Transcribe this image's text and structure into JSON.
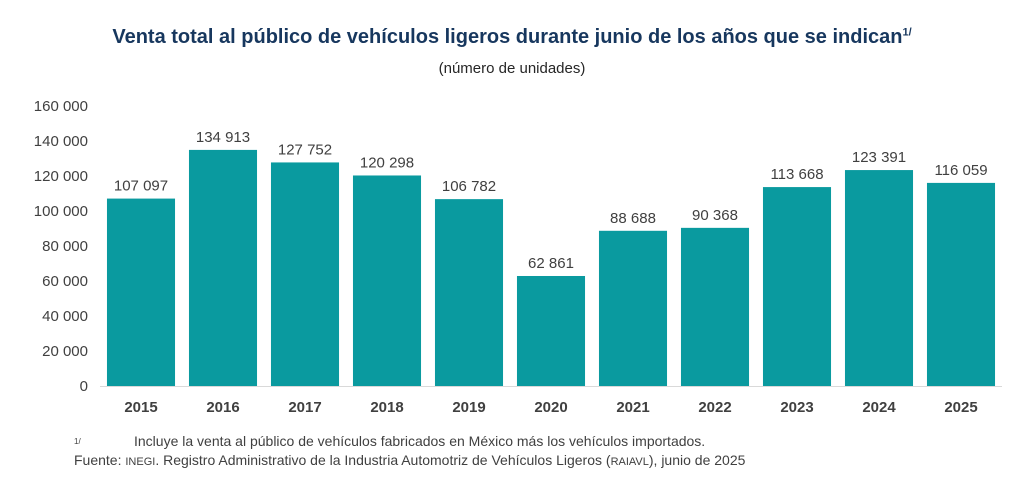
{
  "title": "Venta total al público de vehículos ligeros durante junio de los años que se indican",
  "title_note": "1/",
  "subtitle": "(número de unidades)",
  "chart_data": {
    "type": "bar",
    "title": "Venta total al público de vehículos ligeros durante junio de los años que se indican",
    "ylabel": "(número de unidades)",
    "xlabel": "",
    "categories": [
      "2015",
      "2016",
      "2017",
      "2018",
      "2019",
      "2020",
      "2021",
      "2022",
      "2023",
      "2024",
      "2025"
    ],
    "values": [
      107097,
      134913,
      127752,
      120298,
      106782,
      62861,
      88688,
      90368,
      113668,
      123391,
      116059
    ],
    "value_labels": [
      "107 097",
      "134 913",
      "127 752",
      "120 298",
      "106 782",
      "62 861",
      "88 688",
      "90 368",
      "113 668",
      "123 391",
      "116 059"
    ],
    "ylim": [
      0,
      160000
    ],
    "yticks": [
      0,
      20000,
      40000,
      60000,
      80000,
      100000,
      120000,
      140000,
      160000
    ],
    "ytick_labels": [
      "0",
      "20 000",
      "40 000",
      "60 000",
      "80 000",
      "100 000",
      "120 000",
      "140 000",
      "160 000"
    ],
    "grid": false,
    "legend": "none",
    "bar_color": "#0a9a9f"
  },
  "footnote": {
    "mark": "1/",
    "text": "Incluye la venta al público de vehículos fabricados en México más los vehículos importados."
  },
  "source": {
    "prefix": "Fuente: ",
    "org": "INEGI",
    "text_a": ". Registro Administrativo de la Industria Automotriz de Vehículos Ligeros (",
    "abbr": "RAIAVL",
    "text_b": "), junio de 2025"
  },
  "colors": {
    "title": "#17375e",
    "bars": "#0a9a9f",
    "text": "#404040"
  }
}
